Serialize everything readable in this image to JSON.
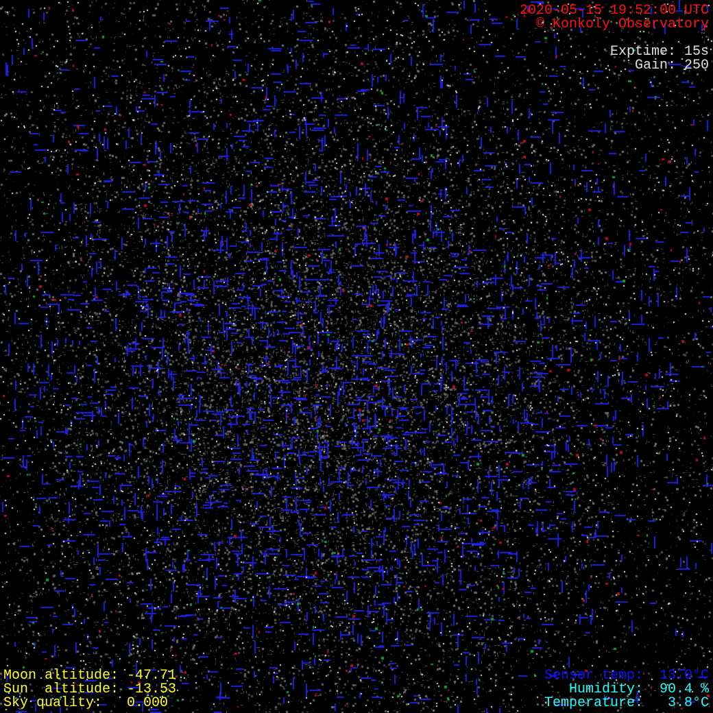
{
  "header": {
    "timestamp": "2020-05-15 19:52:00 UTC",
    "copyright": "© Konkoly Observatory",
    "exptime": "Exptime: 15s",
    "gain": "Gain: 250"
  },
  "footer_left": {
    "moon_altitude": "Moon altitude: -47.71",
    "sun_altitude": "Sun  altitude: -13.53",
    "sky_quality": "Sky quality:   0.000"
  },
  "footer_right": {
    "sensor_temp": "Sensor temp:  13.0°C",
    "humidity": "Humidity:  90.4 %",
    "temperature": "Temperature:   3.8°C"
  },
  "colors": {
    "header": "#ff1010",
    "exposure": "#e0e0e0",
    "left_footer": "#ffff20",
    "sensor_temp": "#1010ff",
    "weather": "#20ffff"
  }
}
